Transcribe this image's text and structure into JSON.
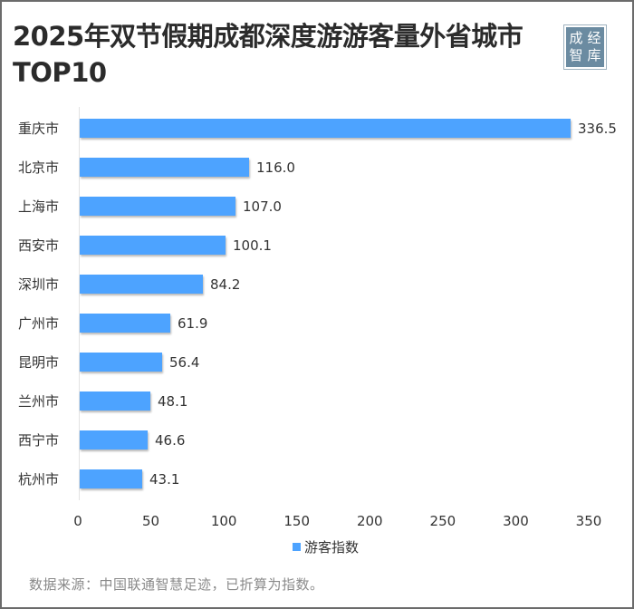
{
  "title": "2025年双节假期成都深度游游客量外省城市TOP10",
  "title_line1": "2025年双节假期成都深度游游客量外省城市",
  "title_line2": "TOP10",
  "logo": {
    "chars": [
      "成",
      "经",
      "智",
      "库"
    ],
    "color": "#6b8ba1"
  },
  "legend": {
    "label": "游客指数",
    "color": "#4da3ff"
  },
  "source": "数据来源：中国联通智慧足迹，已折算为指数。",
  "chart_data": {
    "type": "bar",
    "orientation": "horizontal",
    "title": "2025年双节假期成都深度游游客量外省城市TOP10",
    "categories": [
      "重庆市",
      "北京市",
      "上海市",
      "西安市",
      "深圳市",
      "广州市",
      "昆明市",
      "兰州市",
      "西宁市",
      "杭州市"
    ],
    "series": [
      {
        "name": "游客指数",
        "values": [
          336.5,
          116.0,
          107.0,
          100.1,
          84.2,
          61.9,
          56.4,
          48.1,
          46.6,
          43.1
        ],
        "color": "#4da3ff"
      }
    ],
    "value_labels": [
      "336.5",
      "116.0",
      "107.0",
      "100.1",
      "84.2",
      "61.9",
      "56.4",
      "48.1",
      "46.6",
      "43.1"
    ],
    "xlabel": "",
    "ylabel": "",
    "xlim": [
      0,
      350
    ],
    "xticks": [
      "0",
      "50",
      "100",
      "150",
      "200",
      "250",
      "300",
      "350"
    ],
    "grid": false,
    "legend_position": "bottom"
  }
}
